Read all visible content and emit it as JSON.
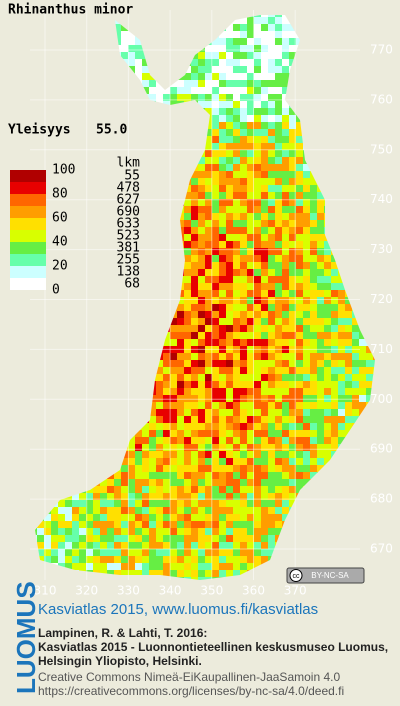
{
  "header": {
    "title": "Rhinanthus minor",
    "frequency_label": "Yleisyys",
    "frequency_value": "55.0"
  },
  "legend": {
    "scale_labels": [
      "100",
      "80",
      "60",
      "40",
      "20",
      "0"
    ],
    "count_header": "lkm",
    "counts": [
      "55",
      "478",
      "627",
      "690",
      "633",
      "523",
      "381",
      "255",
      "138",
      "68"
    ]
  },
  "map": {
    "x_labels": [
      "310",
      "320",
      "330",
      "340",
      "350",
      "360",
      "370"
    ],
    "y_labels": [
      "770",
      "760",
      "750",
      "740",
      "730",
      "720",
      "710",
      "700",
      "690",
      "680",
      "670"
    ],
    "license_badge": "BY-NC-SA"
  },
  "footer": {
    "logo": "LUOMUS",
    "link": "Kasviatlas 2015, www.luomus.fi/kasviatlas",
    "citation": [
      "Lampinen, R. & Lahti, T. 2016:",
      "Kasviatlas 2015 - Luonnontieteellinen keskusmuseo Luomus,",
      "Helsingin Yliopisto, Helsinki."
    ],
    "license": [
      "Creative Commons Nimeä-EiKaupallinen-JaaSamoin 4.0",
      "https://creativecommons.org/licenses/by-nc-sa/4.0/deed.fi"
    ]
  }
}
